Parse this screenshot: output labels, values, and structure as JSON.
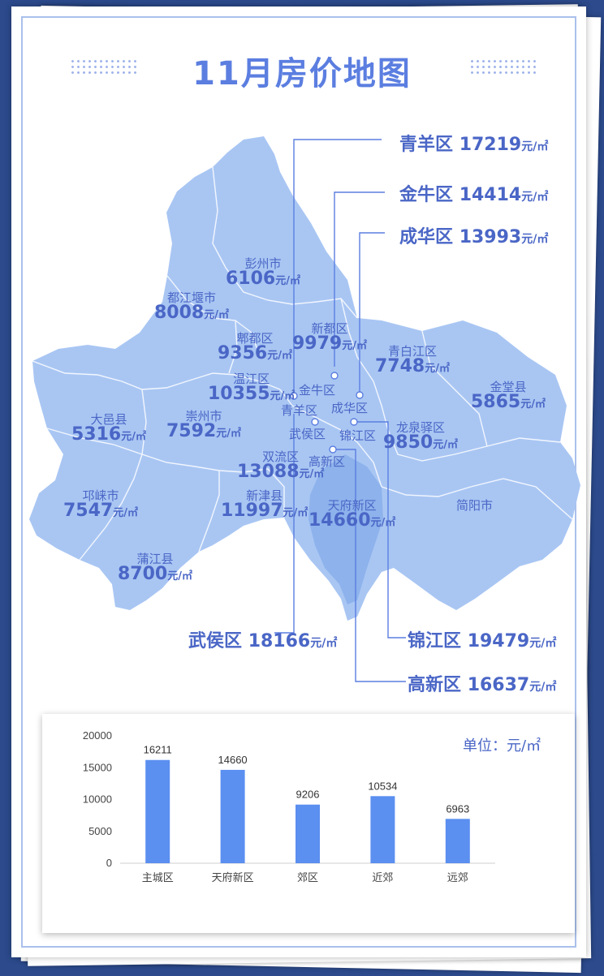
{
  "title": "11月房价地图",
  "colors": {
    "accent": "#5b7ee0",
    "map_fill": "#a9c6f3",
    "map_dark": "#8db2ec",
    "bar": "#5b8ff0",
    "frame_bg": "#2c4a8c"
  },
  "districts": [
    {
      "id": "pengzhou",
      "name": "彭州市",
      "price": "6106",
      "unit": "元/㎡"
    },
    {
      "id": "dujiangyan",
      "name": "都江堰市",
      "price": "8008",
      "unit": "元/㎡"
    },
    {
      "id": "pidu",
      "name": "郫都区",
      "price": "9356",
      "unit": "元/㎡"
    },
    {
      "id": "xindu",
      "name": "新都区",
      "price": "9979",
      "unit": "元/㎡"
    },
    {
      "id": "qingbaijiang",
      "name": "青白江区",
      "price": "7748",
      "unit": "元/㎡"
    },
    {
      "id": "wenjiang",
      "name": "温江区",
      "price": "10355",
      "unit": "元/㎡"
    },
    {
      "id": "jintang",
      "name": "金堂县",
      "price": "5865",
      "unit": "元/㎡"
    },
    {
      "id": "dayi",
      "name": "大邑县",
      "price": "5316",
      "unit": "元/㎡"
    },
    {
      "id": "chongzhou",
      "name": "崇州市",
      "price": "7592",
      "unit": "元/㎡"
    },
    {
      "id": "longquanyi",
      "name": "龙泉驿区",
      "price": "9850",
      "unit": "元/㎡"
    },
    {
      "id": "shuangliu",
      "name": "双流区",
      "price": "13088",
      "unit": "元/㎡"
    },
    {
      "id": "qionglai",
      "name": "邛崃市",
      "price": "7547",
      "unit": "元/㎡"
    },
    {
      "id": "xinjin",
      "name": "新津县",
      "price": "11997",
      "unit": "元/㎡"
    },
    {
      "id": "tianfu",
      "name": "天府新区",
      "price": "14660",
      "unit": "元/㎡"
    },
    {
      "id": "pujiang",
      "name": "蒲江县",
      "price": "8700",
      "unit": "元/㎡"
    }
  ],
  "map_names": {
    "jianyang": "简阳市",
    "jinniu": "金牛区",
    "qingyang": "青羊区",
    "chenghua": "成华区",
    "wuhou": "武侯区",
    "jinjiang": "锦江区",
    "gaoxin": "高新区"
  },
  "callouts": [
    {
      "id": "qingyang",
      "name": "青羊区",
      "price": "17219",
      "unit": "元/㎡"
    },
    {
      "id": "jinniu",
      "name": "金牛区",
      "price": "14414",
      "unit": "元/㎡"
    },
    {
      "id": "chenghua",
      "name": "成华区",
      "price": "13993",
      "unit": "元/㎡"
    },
    {
      "id": "wuhou",
      "name": "武侯区",
      "price": "18166",
      "unit": "元/㎡"
    },
    {
      "id": "jinjiang",
      "name": "锦江区",
      "price": "19479",
      "unit": "元/㎡"
    },
    {
      "id": "gaoxin",
      "name": "高新区",
      "price": "16637",
      "unit": "元/㎡"
    }
  ],
  "chart_data": {
    "type": "bar",
    "categories": [
      "主城区",
      "天府新区",
      "郊区",
      "近郊",
      "远郊"
    ],
    "values": [
      16211,
      14660,
      9206,
      10534,
      6963
    ],
    "ylim": [
      0,
      20000
    ],
    "yticks": [
      "20000",
      "15000",
      "10000",
      "5000",
      "0"
    ],
    "unit_label": "单位：元/㎡",
    "grid": false
  }
}
